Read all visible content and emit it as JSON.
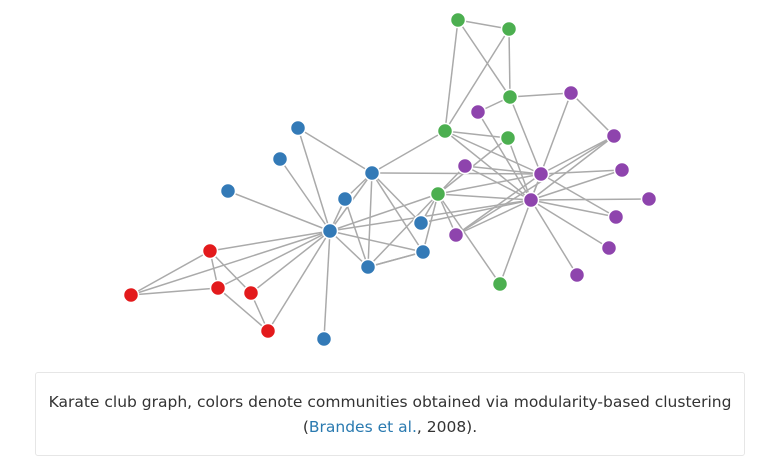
{
  "caption": {
    "line1": "Karate club graph, colors denote communities obtained via modularity-based clustering",
    "open_paren": "(",
    "citation_link": "Brandes et al.",
    "citation_rest": ", 2008)."
  },
  "colors": {
    "blue": "#337ab7",
    "red": "#e31a1c",
    "green": "#4caf50",
    "purple": "#8e44ad",
    "edge": "#aaaaaa"
  },
  "graph": {
    "communities": [
      "blue",
      "red",
      "green",
      "purple"
    ],
    "node_count": 34
  }
}
